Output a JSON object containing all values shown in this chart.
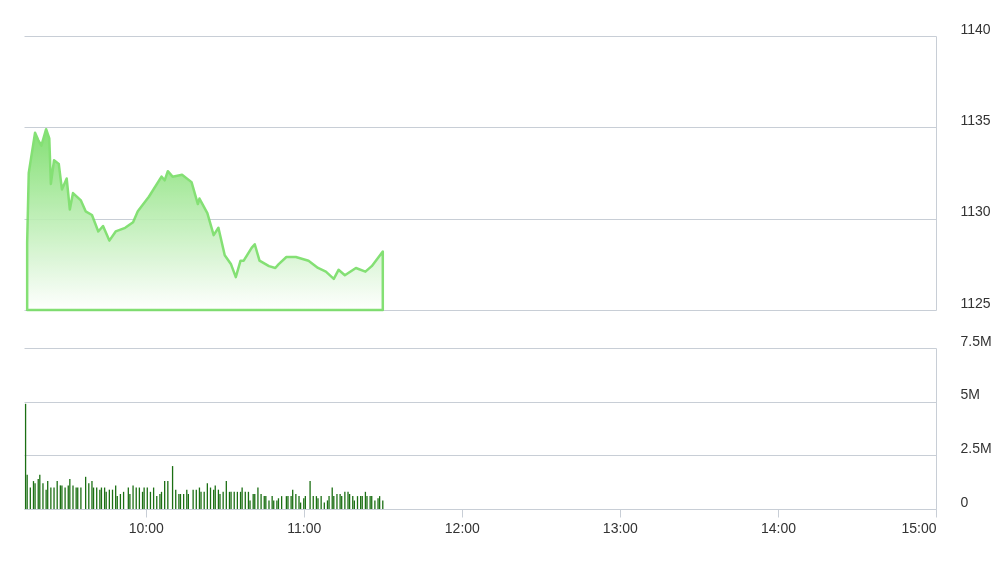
{
  "chart_data": [
    {
      "type": "area",
      "color": "#77dd66",
      "x": [
        9.25,
        9.26,
        9.3,
        9.32,
        9.34,
        9.37,
        9.39,
        9.4,
        9.42,
        9.45,
        9.47,
        9.5,
        9.52,
        9.54,
        9.59,
        9.62,
        9.66,
        9.7,
        9.73,
        9.77,
        9.81,
        9.87,
        9.92,
        9.95,
        10.02,
        10.1,
        10.12,
        10.14,
        10.17,
        10.23,
        10.29,
        10.33,
        10.34,
        10.39,
        10.43,
        10.46,
        10.5,
        10.54,
        10.57,
        10.6,
        10.62,
        10.67,
        10.69,
        10.72,
        10.78,
        10.82,
        10.84,
        10.89,
        10.95,
        11.03,
        11.09,
        11.14,
        11.19,
        11.22,
        11.26,
        11.33,
        11.39,
        11.43,
        11.5
      ],
      "values": [
        1128.7,
        1132.5,
        1134.7,
        1134.3,
        1134.0,
        1134.9,
        1134.4,
        1131.9,
        1133.2,
        1133.0,
        1131.6,
        1132.2,
        1130.5,
        1131.4,
        1131.0,
        1130.4,
        1130.2,
        1129.3,
        1129.6,
        1128.8,
        1129.3,
        1129.5,
        1129.8,
        1130.4,
        1131.2,
        1132.3,
        1132.1,
        1132.6,
        1132.3,
        1132.4,
        1132.0,
        1130.8,
        1131.1,
        1130.3,
        1129.1,
        1129.5,
        1128.0,
        1127.5,
        1126.8,
        1127.7,
        1127.7,
        1128.4,
        1128.6,
        1127.7,
        1127.4,
        1127.3,
        1127.5,
        1127.9,
        1127.9,
        1127.7,
        1127.3,
        1127.1,
        1126.7,
        1127.2,
        1126.9,
        1127.3,
        1127.1,
        1127.4,
        1128.2
      ],
      "xlim": [
        9.23,
        15
      ],
      "ylim": [
        1125,
        1140
      ],
      "yticks": [
        1125,
        1130,
        1135,
        1140
      ],
      "grid": "y",
      "tick_labels": "y"
    },
    {
      "type": "bar",
      "color": "#1b6f13",
      "x": [
        9.24,
        9.25,
        9.27,
        9.29,
        9.3,
        9.32,
        9.33,
        9.35,
        9.37,
        9.38,
        9.4,
        9.42,
        9.44,
        9.46,
        9.47,
        9.49,
        9.51,
        9.52,
        9.54,
        9.56,
        9.57,
        9.59,
        9.62,
        9.64,
        9.66,
        9.67,
        9.69,
        9.71,
        9.72,
        9.74,
        9.75,
        9.77,
        9.79,
        9.81,
        9.82,
        9.84,
        9.86,
        9.89,
        9.9,
        9.92,
        9.94,
        9.96,
        9.98,
        9.99,
        10.01,
        10.03,
        10.05,
        10.07,
        10.09,
        10.1,
        10.12,
        10.14,
        10.17,
        10.19,
        10.21,
        10.22,
        10.24,
        10.26,
        10.27,
        10.3,
        10.32,
        10.34,
        10.35,
        10.37,
        10.39,
        10.41,
        10.43,
        10.44,
        10.46,
        10.47,
        10.49,
        10.51,
        10.53,
        10.54,
        10.56,
        10.58,
        10.6,
        10.61,
        10.63,
        10.65,
        10.66,
        10.68,
        10.69,
        10.71,
        10.73,
        10.75,
        10.76,
        10.78,
        10.8,
        10.81,
        10.83,
        10.84,
        10.86,
        10.89,
        10.9,
        10.92,
        10.93,
        10.95,
        10.97,
        10.98,
        11.0,
        11.01,
        11.04,
        11.06,
        11.08,
        11.09,
        11.11,
        11.13,
        11.15,
        11.16,
        11.18,
        11.19,
        11.21,
        11.23,
        11.24,
        11.26,
        11.28,
        11.29,
        11.31,
        11.32,
        11.34,
        11.36,
        11.37,
        11.39,
        11.4,
        11.42,
        11.43,
        11.45,
        11.47,
        11.48,
        11.5
      ],
      "values": [
        4.9,
        1.6,
        1.0,
        1.3,
        1.2,
        1.4,
        1.6,
        1.2,
        0.9,
        1.3,
        1.0,
        1.0,
        1.3,
        1.1,
        1.1,
        1.0,
        1.1,
        1.4,
        1.1,
        1.0,
        1.0,
        1.0,
        1.5,
        1.2,
        1.3,
        1.0,
        1.0,
        0.9,
        1.0,
        1.0,
        0.8,
        0.9,
        0.9,
        1.1,
        0.6,
        0.7,
        0.8,
        1.0,
        0.7,
        1.1,
        1.0,
        1.0,
        0.8,
        1.0,
        1.0,
        0.8,
        1.0,
        0.6,
        0.7,
        0.8,
        1.3,
        1.3,
        2.0,
        0.9,
        0.7,
        0.7,
        0.7,
        0.9,
        0.7,
        0.9,
        0.9,
        1.0,
        0.8,
        0.8,
        1.2,
        1.0,
        0.9,
        1.1,
        0.9,
        0.7,
        0.8,
        1.3,
        0.8,
        0.8,
        0.8,
        0.8,
        0.8,
        1.0,
        0.8,
        0.8,
        0.4,
        0.7,
        0.7,
        1.0,
        0.7,
        0.6,
        0.6,
        0.4,
        0.6,
        0.4,
        0.4,
        0.5,
        0.6,
        0.6,
        0.6,
        0.6,
        0.9,
        0.7,
        0.6,
        0.3,
        0.5,
        0.6,
        1.3,
        0.6,
        0.6,
        0.5,
        0.6,
        0.3,
        0.4,
        0.6,
        1.0,
        0.6,
        0.7,
        0.7,
        0.6,
        0.8,
        0.8,
        0.7,
        0.6,
        0.4,
        0.6,
        0.6,
        0.6,
        0.8,
        0.6,
        0.6,
        0.6,
        0.4,
        0.5,
        0.6,
        0.4
      ],
      "xlim": [
        9.23,
        15
      ],
      "xticks": [
        {
          "value": 10,
          "label": "10:00"
        },
        {
          "value": 11,
          "label": "11:00"
        },
        {
          "value": 12,
          "label": "12:00"
        },
        {
          "value": 13,
          "label": "13:00"
        },
        {
          "value": 14,
          "label": "14:00"
        },
        {
          "value": 15,
          "label": "15:00"
        }
      ],
      "ylim": [
        0,
        7.5
      ],
      "yticks": [
        {
          "value": 0,
          "label": "0"
        },
        {
          "value": 2.5,
          "label": "2.5M"
        },
        {
          "value": 5,
          "label": "5M"
        },
        {
          "value": 7.5,
          "label": "7.5M"
        }
      ],
      "grid": "y"
    }
  ]
}
